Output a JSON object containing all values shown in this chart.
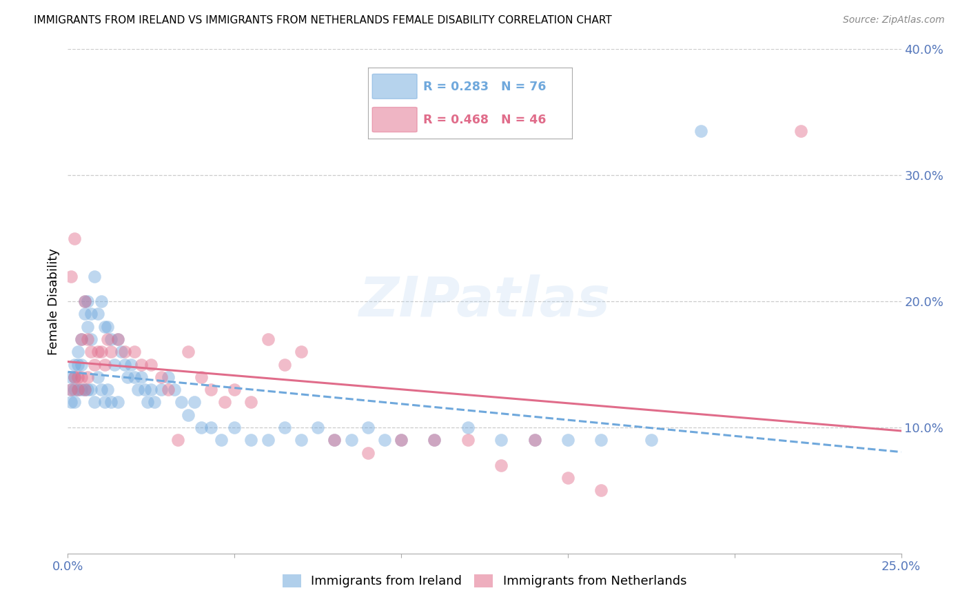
{
  "title": "IMMIGRANTS FROM IRELAND VS IMMIGRANTS FROM NETHERLANDS FEMALE DISABILITY CORRELATION CHART",
  "source": "Source: ZipAtlas.com",
  "ylabel_label": "Female Disability",
  "xlim": [
    0.0,
    0.25
  ],
  "ylim": [
    0.0,
    0.4
  ],
  "ireland_color": "#6fa8dc",
  "netherlands_color": "#e06c8a",
  "ireland_R": 0.283,
  "ireland_N": 76,
  "netherlands_R": 0.468,
  "netherlands_N": 46,
  "watermark": "ZIPatlas",
  "ireland_x": [
    0.001,
    0.001,
    0.001,
    0.002,
    0.002,
    0.002,
    0.002,
    0.003,
    0.003,
    0.003,
    0.004,
    0.004,
    0.004,
    0.005,
    0.005,
    0.005,
    0.006,
    0.006,
    0.006,
    0.007,
    0.007,
    0.007,
    0.008,
    0.008,
    0.009,
    0.009,
    0.01,
    0.01,
    0.011,
    0.011,
    0.012,
    0.012,
    0.013,
    0.013,
    0.014,
    0.015,
    0.015,
    0.016,
    0.017,
    0.018,
    0.019,
    0.02,
    0.021,
    0.022,
    0.023,
    0.024,
    0.025,
    0.026,
    0.028,
    0.03,
    0.032,
    0.034,
    0.036,
    0.038,
    0.04,
    0.043,
    0.046,
    0.05,
    0.055,
    0.06,
    0.065,
    0.07,
    0.075,
    0.08,
    0.085,
    0.09,
    0.095,
    0.1,
    0.11,
    0.12,
    0.13,
    0.14,
    0.15,
    0.16,
    0.175,
    0.19
  ],
  "ireland_y": [
    0.14,
    0.13,
    0.12,
    0.15,
    0.14,
    0.13,
    0.12,
    0.16,
    0.15,
    0.13,
    0.17,
    0.15,
    0.13,
    0.2,
    0.19,
    0.13,
    0.2,
    0.18,
    0.13,
    0.19,
    0.17,
    0.13,
    0.22,
    0.12,
    0.19,
    0.14,
    0.2,
    0.13,
    0.18,
    0.12,
    0.18,
    0.13,
    0.17,
    0.12,
    0.15,
    0.17,
    0.12,
    0.16,
    0.15,
    0.14,
    0.15,
    0.14,
    0.13,
    0.14,
    0.13,
    0.12,
    0.13,
    0.12,
    0.13,
    0.14,
    0.13,
    0.12,
    0.11,
    0.12,
    0.1,
    0.1,
    0.09,
    0.1,
    0.09,
    0.09,
    0.1,
    0.09,
    0.1,
    0.09,
    0.09,
    0.1,
    0.09,
    0.09,
    0.09,
    0.1,
    0.09,
    0.09,
    0.09,
    0.09,
    0.09,
    0.335
  ],
  "netherlands_x": [
    0.001,
    0.001,
    0.002,
    0.002,
    0.003,
    0.003,
    0.004,
    0.004,
    0.005,
    0.005,
    0.006,
    0.006,
    0.007,
    0.008,
    0.009,
    0.01,
    0.011,
    0.012,
    0.013,
    0.015,
    0.017,
    0.02,
    0.022,
    0.025,
    0.028,
    0.03,
    0.033,
    0.036,
    0.04,
    0.043,
    0.047,
    0.05,
    0.055,
    0.06,
    0.065,
    0.07,
    0.08,
    0.09,
    0.1,
    0.11,
    0.12,
    0.13,
    0.14,
    0.15,
    0.16,
    0.22
  ],
  "netherlands_y": [
    0.13,
    0.22,
    0.14,
    0.25,
    0.13,
    0.14,
    0.17,
    0.14,
    0.2,
    0.13,
    0.17,
    0.14,
    0.16,
    0.15,
    0.16,
    0.16,
    0.15,
    0.17,
    0.16,
    0.17,
    0.16,
    0.16,
    0.15,
    0.15,
    0.14,
    0.13,
    0.09,
    0.16,
    0.14,
    0.13,
    0.12,
    0.13,
    0.12,
    0.17,
    0.15,
    0.16,
    0.09,
    0.08,
    0.09,
    0.09,
    0.09,
    0.07,
    0.09,
    0.06,
    0.05,
    0.335
  ]
}
